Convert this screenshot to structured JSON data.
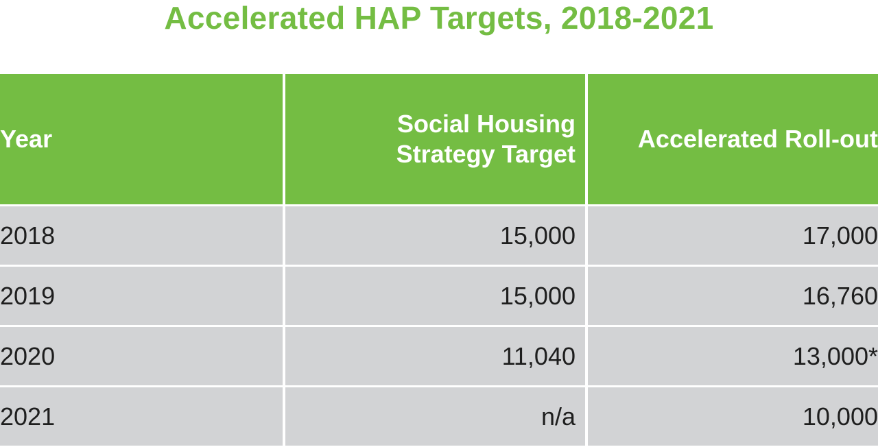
{
  "title": "Accelerated HAP Targets, 2018-2021",
  "table": {
    "headers": {
      "year": "Year",
      "shs_line1": "Social Housing",
      "shs_line2": "Strategy Target",
      "accelerated": "Accelerated Roll-out"
    },
    "rows": [
      {
        "year": "2018",
        "shs": "15,000",
        "accelerated": "17,000"
      },
      {
        "year": "2019",
        "shs": "15,000",
        "accelerated": "16,760"
      },
      {
        "year": "2020",
        "shs": "11,040",
        "accelerated": "13,000*"
      },
      {
        "year": "2021",
        "shs": "n/a",
        "accelerated": "10,000"
      }
    ]
  },
  "colors": {
    "header_green": "#74bd43",
    "title_green": "#74bd43",
    "row_gray": "#d2d3d5"
  },
  "chart_data": {
    "type": "table",
    "title": "Accelerated HAP Targets, 2018-2021",
    "columns": [
      "Year",
      "Social Housing Strategy Target",
      "Accelerated Roll-out"
    ],
    "rows": [
      [
        "2018",
        15000,
        17000
      ],
      [
        "2019",
        15000,
        16760
      ],
      [
        "2020",
        11040,
        "13,000*"
      ],
      [
        "2021",
        "n/a",
        10000
      ]
    ]
  }
}
